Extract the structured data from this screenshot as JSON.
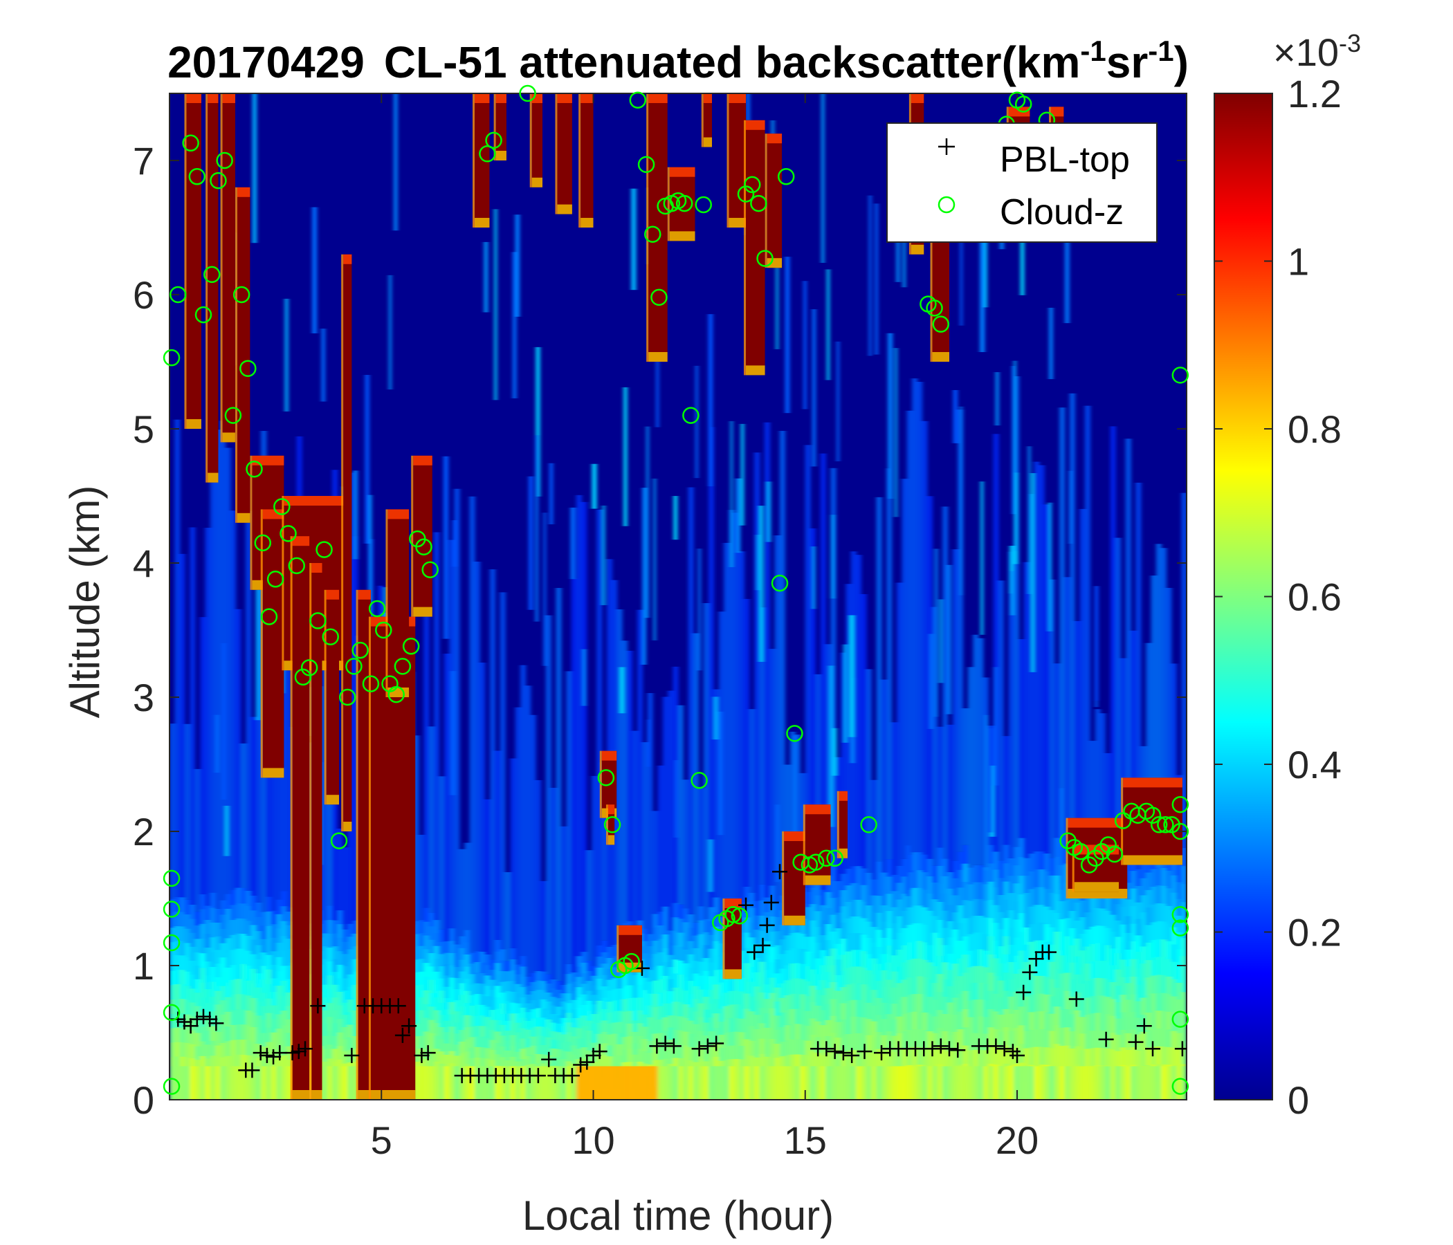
{
  "chart_data": {
    "type": "heatmap",
    "title": {
      "date": "20170429",
      "main": "CL-51 attenuated backscatter(km",
      "sup1": "-1",
      "mid": "sr",
      "sup2": "-1",
      "end": ")"
    },
    "xlabel": "Local time (hour)",
    "ylabel": "Altitude (km)",
    "xlim": [
      0,
      24
    ],
    "ylim": [
      0,
      7.5
    ],
    "xticks": [
      "5",
      "10",
      "15",
      "20"
    ],
    "xtick_values": [
      5,
      10,
      15,
      20
    ],
    "yticks": [
      "0",
      "1",
      "2",
      "3",
      "4",
      "5",
      "6",
      "7"
    ],
    "ytick_values": [
      0,
      1,
      2,
      3,
      4,
      5,
      6,
      7
    ],
    "colorbar": {
      "range": [
        0,
        0.0012
      ],
      "multiplier": "×10",
      "multiplier_exp": "-3",
      "ticks": [
        "0",
        "0.2",
        "0.4",
        "0.6",
        "0.8",
        "1",
        "1.2"
      ],
      "tick_values": [
        0,
        0.2,
        0.4,
        0.6,
        0.8,
        1.0,
        1.2
      ],
      "colormap": "jet"
    },
    "legend": {
      "position": "top-right",
      "entries": [
        {
          "label": "PBL-top",
          "marker": "+",
          "color": "#000000"
        },
        {
          "label": "Cloud-z",
          "marker": "o",
          "color": "#00ff00"
        }
      ]
    },
    "pbl_top": [
      [
        0.2,
        0.6
      ],
      [
        0.35,
        0.58
      ],
      [
        0.5,
        0.55
      ],
      [
        0.65,
        0.6
      ],
      [
        0.8,
        0.62
      ],
      [
        0.95,
        0.6
      ],
      [
        1.1,
        0.57
      ],
      [
        1.8,
        0.22
      ],
      [
        1.95,
        0.22
      ],
      [
        2.15,
        0.35
      ],
      [
        2.3,
        0.33
      ],
      [
        2.45,
        0.32
      ],
      [
        2.6,
        0.35
      ],
      [
        2.9,
        0.35
      ],
      [
        3.05,
        0.36
      ],
      [
        3.2,
        0.38
      ],
      [
        3.5,
        0.7
      ],
      [
        4.3,
        0.33
      ],
      [
        4.6,
        0.7
      ],
      [
        4.8,
        0.7
      ],
      [
        5.0,
        0.7
      ],
      [
        5.2,
        0.7
      ],
      [
        5.4,
        0.7
      ],
      [
        5.5,
        0.48
      ],
      [
        5.65,
        0.55
      ],
      [
        5.95,
        0.33
      ],
      [
        6.1,
        0.35
      ],
      [
        6.9,
        0.18
      ],
      [
        7.1,
        0.18
      ],
      [
        7.3,
        0.18
      ],
      [
        7.5,
        0.18
      ],
      [
        7.7,
        0.18
      ],
      [
        7.9,
        0.18
      ],
      [
        8.1,
        0.18
      ],
      [
        8.3,
        0.18
      ],
      [
        8.5,
        0.18
      ],
      [
        8.7,
        0.18
      ],
      [
        8.95,
        0.3
      ],
      [
        9.1,
        0.18
      ],
      [
        9.3,
        0.18
      ],
      [
        9.5,
        0.18
      ],
      [
        9.7,
        0.26
      ],
      [
        9.85,
        0.28
      ],
      [
        10.0,
        0.33
      ],
      [
        10.15,
        0.36
      ],
      [
        11.15,
        0.98
      ],
      [
        11.5,
        0.4
      ],
      [
        11.7,
        0.42
      ],
      [
        11.9,
        0.4
      ],
      [
        12.5,
        0.38
      ],
      [
        12.7,
        0.4
      ],
      [
        12.9,
        0.42
      ],
      [
        13.6,
        1.45
      ],
      [
        13.8,
        1.1
      ],
      [
        14.0,
        1.15
      ],
      [
        14.1,
        1.3
      ],
      [
        14.2,
        1.47
      ],
      [
        14.4,
        1.7
      ],
      [
        15.3,
        0.38
      ],
      [
        15.5,
        0.38
      ],
      [
        15.7,
        0.36
      ],
      [
        15.9,
        0.35
      ],
      [
        16.1,
        0.33
      ],
      [
        16.4,
        0.36
      ],
      [
        16.8,
        0.35
      ],
      [
        17.0,
        0.38
      ],
      [
        17.2,
        0.38
      ],
      [
        17.4,
        0.38
      ],
      [
        17.6,
        0.38
      ],
      [
        17.8,
        0.38
      ],
      [
        18.0,
        0.38
      ],
      [
        18.2,
        0.4
      ],
      [
        18.4,
        0.38
      ],
      [
        18.6,
        0.37
      ],
      [
        19.1,
        0.4
      ],
      [
        19.3,
        0.4
      ],
      [
        19.5,
        0.4
      ],
      [
        19.7,
        0.38
      ],
      [
        19.9,
        0.36
      ],
      [
        20.0,
        0.33
      ],
      [
        20.15,
        0.8
      ],
      [
        20.3,
        0.95
      ],
      [
        20.45,
        1.05
      ],
      [
        20.6,
        1.1
      ],
      [
        20.75,
        1.1
      ],
      [
        21.4,
        0.75
      ],
      [
        22.1,
        0.45
      ],
      [
        22.8,
        0.43
      ],
      [
        23.0,
        0.55
      ],
      [
        23.2,
        0.38
      ],
      [
        23.9,
        0.38
      ]
    ],
    "cloud_z": [
      [
        0.05,
        5.53
      ],
      [
        0.05,
        1.65
      ],
      [
        0.05,
        1.42
      ],
      [
        0.05,
        1.17
      ],
      [
        0.05,
        0.65
      ],
      [
        0.05,
        0.1
      ],
      [
        0.2,
        6.0
      ],
      [
        0.5,
        7.13
      ],
      [
        0.65,
        6.88
      ],
      [
        0.8,
        5.85
      ],
      [
        1.0,
        6.15
      ],
      [
        1.15,
        6.85
      ],
      [
        1.3,
        7.0
      ],
      [
        1.5,
        5.1
      ],
      [
        1.7,
        6.0
      ],
      [
        1.85,
        5.45
      ],
      [
        2.0,
        4.7
      ],
      [
        2.2,
        4.15
      ],
      [
        2.35,
        3.6
      ],
      [
        2.5,
        3.88
      ],
      [
        2.65,
        4.42
      ],
      [
        2.8,
        4.22
      ],
      [
        3.0,
        3.98
      ],
      [
        3.15,
        3.15
      ],
      [
        3.3,
        3.22
      ],
      [
        3.5,
        3.57
      ],
      [
        3.65,
        4.1
      ],
      [
        3.8,
        3.45
      ],
      [
        4.0,
        1.93
      ],
      [
        4.2,
        3.0
      ],
      [
        4.35,
        3.23
      ],
      [
        4.5,
        3.35
      ],
      [
        4.75,
        3.1
      ],
      [
        4.9,
        3.66
      ],
      [
        5.05,
        3.5
      ],
      [
        5.2,
        3.1
      ],
      [
        5.35,
        3.02
      ],
      [
        5.5,
        3.23
      ],
      [
        5.7,
        3.38
      ],
      [
        5.85,
        4.18
      ],
      [
        6.0,
        4.12
      ],
      [
        6.15,
        3.95
      ],
      [
        7.5,
        7.05
      ],
      [
        7.65,
        7.15
      ],
      [
        8.45,
        7.5
      ],
      [
        10.3,
        2.4
      ],
      [
        10.45,
        2.05
      ],
      [
        10.6,
        0.97
      ],
      [
        10.75,
        1.0
      ],
      [
        10.9,
        1.03
      ],
      [
        11.05,
        7.45
      ],
      [
        11.25,
        6.97
      ],
      [
        11.4,
        6.45
      ],
      [
        11.55,
        5.98
      ],
      [
        11.7,
        6.66
      ],
      [
        11.85,
        6.68
      ],
      [
        12.0,
        6.7
      ],
      [
        12.15,
        6.68
      ],
      [
        12.3,
        5.1
      ],
      [
        12.5,
        2.38
      ],
      [
        12.6,
        6.67
      ],
      [
        13.0,
        1.32
      ],
      [
        13.15,
        1.35
      ],
      [
        13.3,
        1.38
      ],
      [
        13.45,
        1.37
      ],
      [
        13.6,
        6.75
      ],
      [
        13.75,
        6.82
      ],
      [
        13.9,
        6.68
      ],
      [
        14.05,
        6.27
      ],
      [
        14.4,
        3.85
      ],
      [
        14.55,
        6.88
      ],
      [
        14.75,
        2.73
      ],
      [
        14.9,
        1.77
      ],
      [
        15.1,
        1.75
      ],
      [
        15.25,
        1.77
      ],
      [
        15.5,
        1.8
      ],
      [
        15.7,
        1.8
      ],
      [
        16.5,
        2.05
      ],
      [
        17.9,
        5.93
      ],
      [
        18.05,
        5.9
      ],
      [
        18.2,
        5.78
      ],
      [
        19.75,
        7.27
      ],
      [
        20.0,
        7.45
      ],
      [
        20.15,
        7.42
      ],
      [
        20.7,
        7.3
      ],
      [
        21.2,
        1.93
      ],
      [
        21.35,
        1.88
      ],
      [
        21.5,
        1.85
      ],
      [
        21.7,
        1.75
      ],
      [
        21.85,
        1.8
      ],
      [
        22.0,
        1.85
      ],
      [
        22.15,
        1.9
      ],
      [
        22.3,
        1.83
      ],
      [
        22.5,
        2.08
      ],
      [
        22.7,
        2.15
      ],
      [
        22.85,
        2.12
      ],
      [
        23.05,
        2.15
      ],
      [
        23.2,
        2.12
      ],
      [
        23.35,
        2.05
      ],
      [
        23.5,
        2.05
      ],
      [
        23.65,
        2.05
      ],
      [
        23.85,
        2.0
      ],
      [
        23.85,
        2.2
      ],
      [
        23.85,
        5.4
      ],
      [
        23.85,
        1.38
      ],
      [
        23.85,
        1.28
      ],
      [
        23.85,
        0.6
      ],
      [
        23.85,
        0.1
      ]
    ]
  }
}
